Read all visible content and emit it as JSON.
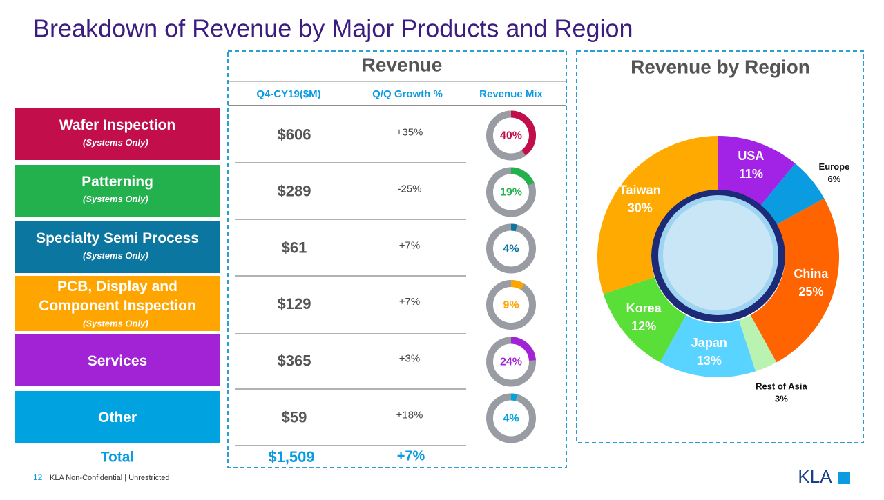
{
  "title": "Breakdown of Revenue by Major Products and Region",
  "revenue_heading": "Revenue",
  "columns": [
    "Q4-CY19($M)",
    "Q/Q Growth %",
    "Revenue Mix"
  ],
  "products": [
    {
      "name": "Wafer Inspection",
      "note": "(Systems Only)",
      "revenue": "$606",
      "growth": "+35%"
    },
    {
      "name": "Patterning",
      "note": "(Systems Only)",
      "revenue": "$289",
      "growth": "-25%"
    },
    {
      "name": "Specialty Semi Process",
      "note": "(Systems Only)",
      "revenue": "$61",
      "growth": "+7%"
    },
    {
      "name": "PCB, Display and Component Inspection",
      "note": "(Systems Only)",
      "revenue": "$129",
      "growth": "+7%"
    },
    {
      "name": "Services",
      "revenue": "$365",
      "growth": "+3%"
    },
    {
      "name": "Other",
      "revenue": "$59",
      "growth": "+18%"
    }
  ],
  "total": {
    "label": "Total",
    "revenue": "$1,509",
    "growth": "+7%"
  },
  "footer": {
    "page": "12",
    "text": "KLA Non-Confidential | Unrestricted",
    "logo": "KLA"
  },
  "chart_data": [
    {
      "type": "ring",
      "values": [
        40,
        19,
        4,
        9,
        24,
        4
      ],
      "value_labels": [
        "40%",
        "19%",
        "4%",
        "9%",
        "24%",
        "4%"
      ],
      "colors": [
        "#c20e4b",
        "#22b14c",
        "#0b76a0",
        "#ffa500",
        "#a223d6",
        "#00a3e0"
      ]
    },
    {
      "type": "donut",
      "title": "Revenue by Region",
      "categories": [
        "USA",
        "Europe",
        "China",
        "Rest of Asia",
        "Japan",
        "Korea",
        "Taiwan"
      ],
      "values": [
        11,
        6,
        25,
        3,
        13,
        12,
        30
      ],
      "value_labels": [
        "11%",
        "6%",
        "25%",
        "3%",
        "13%",
        "12%",
        "30%"
      ],
      "colors": [
        "#a223e6",
        "#0a9be0",
        "#ff6400",
        "#b9f2b1",
        "#59d3ff",
        "#5ade38",
        "#ffaa00"
      ]
    }
  ]
}
